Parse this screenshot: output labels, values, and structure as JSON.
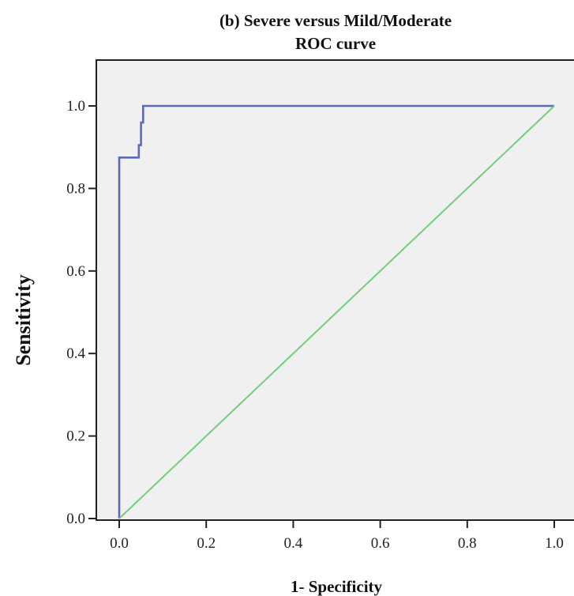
{
  "chart_data": {
    "type": "line",
    "title": "(b) Severe versus Mild/Moderate",
    "subtitle": "ROC curve",
    "xlabel": "1- Specificity",
    "ylabel": "Sensitivity",
    "xlim": [
      0.0,
      1.0
    ],
    "ylim": [
      0.0,
      1.0
    ],
    "x_ticks": [
      "0.0",
      "0.2",
      "0.4",
      "0.6",
      "0.8",
      "1.0"
    ],
    "y_ticks": [
      "0.0",
      "0.2",
      "0.4",
      "0.6",
      "0.8",
      "1.0"
    ],
    "grid": false,
    "legend": "none",
    "plot_background": "#f0f0f0",
    "series": [
      {
        "color": "#5b6bb8",
        "x": [
          0.0,
          0.0,
          0.045,
          0.045,
          0.05,
          0.05,
          0.055,
          0.055,
          1.0
        ],
        "y": [
          0.0,
          0.875,
          0.875,
          0.905,
          0.905,
          0.96,
          0.96,
          1.0,
          1.0
        ]
      },
      {
        "color": "#6fcf7c",
        "x": [
          0.0,
          1.0
        ],
        "y": [
          0.0,
          1.0
        ]
      }
    ]
  }
}
